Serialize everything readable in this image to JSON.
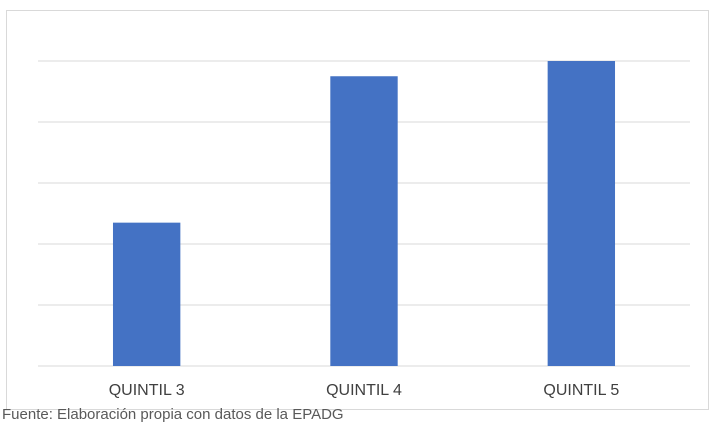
{
  "chart_data": {
    "type": "bar",
    "categories": [
      "QUINTIL 3",
      "QUINTIL 4",
      "QUINTIL 5"
    ],
    "values": [
      23.5,
      47.5,
      50
    ],
    "ylim": [
      0,
      60
    ],
    "grid": true,
    "bar_color": "#4472c4",
    "grid_color": "#d9d9d9"
  },
  "source_note": "Fuente: Elaboración propia con datos de la EPADG"
}
